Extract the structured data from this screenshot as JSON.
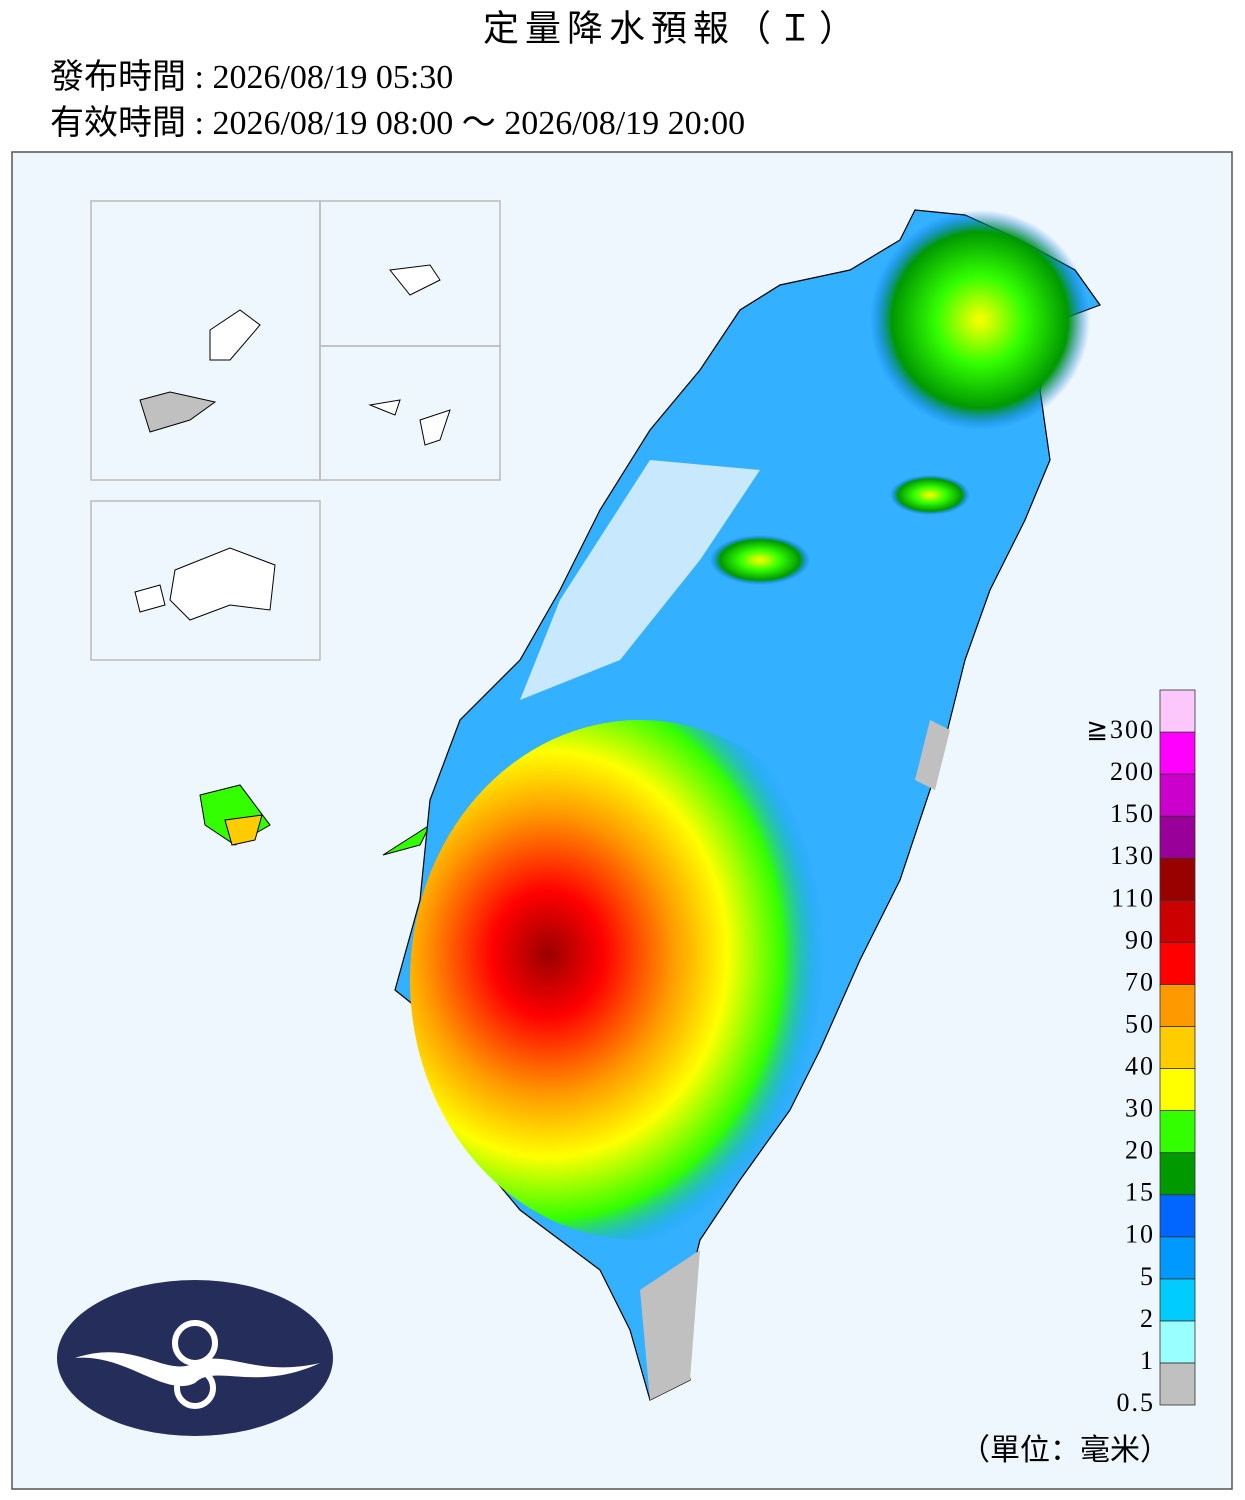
{
  "header": {
    "title": "定量降水預報（Ｉ）",
    "issued": "發布時間 : 2026/08/19 05:30",
    "valid": "有效時間 : 2026/08/19 08:00 ～ 2026/08/19 20:00"
  },
  "legend": {
    "labels": [
      "0.5",
      "1",
      "2",
      "5",
      "10",
      "15",
      "20",
      "30",
      "40",
      "50",
      "70",
      "90",
      "110",
      "130",
      "150",
      "200",
      "≧300"
    ],
    "colors": [
      "#c0c0c0",
      "#99ffff",
      "#00ccff",
      "#0099ff",
      "#0066ff",
      "#009900",
      "#33ff00",
      "#ffff00",
      "#ffcc00",
      "#ff9900",
      "#ff0000",
      "#cc0000",
      "#990000",
      "#990099",
      "#cc00cc",
      "#ff00ff",
      "#fcc8fb"
    ],
    "unit": "（單位：毫米）"
  }
}
